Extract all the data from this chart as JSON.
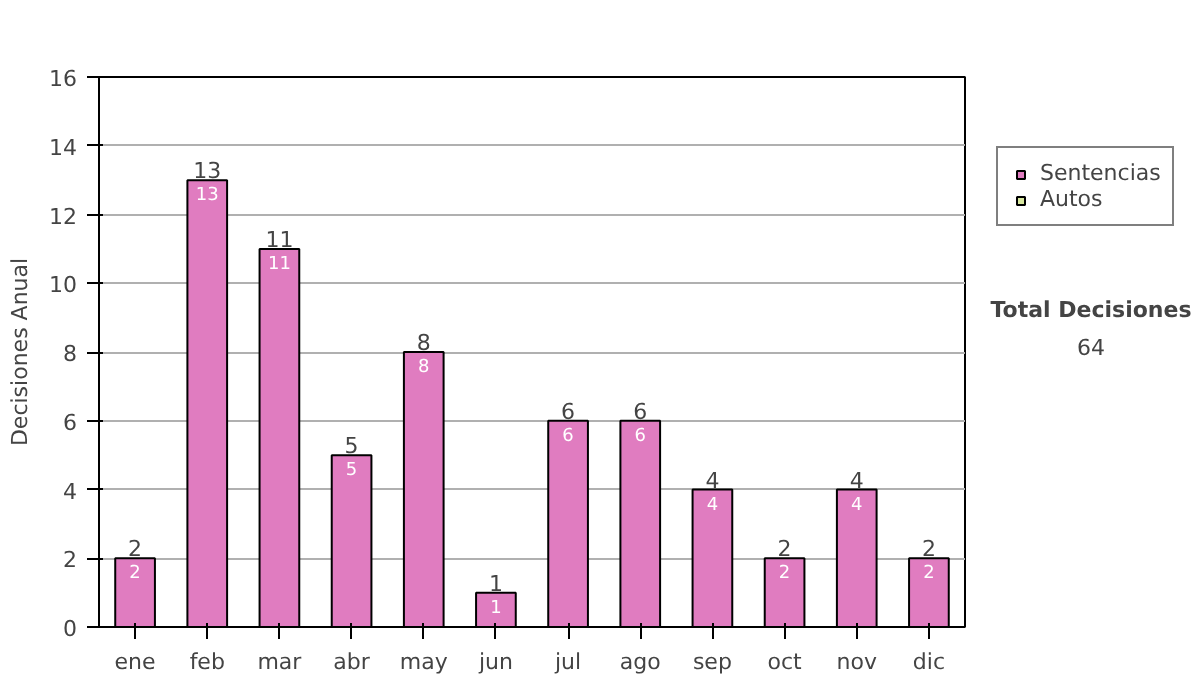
{
  "chart_data": {
    "type": "bar",
    "ylabel": "Decisiones Anual",
    "categories": [
      "ene",
      "feb",
      "mar",
      "abr",
      "may",
      "jun",
      "jul",
      "ago",
      "sep",
      "oct",
      "nov",
      "dic"
    ],
    "series": [
      {
        "name": "Sentencias",
        "color": "#e07cc0",
        "values": [
          2,
          13,
          11,
          5,
          8,
          1,
          6,
          6,
          4,
          2,
          4,
          2
        ],
        "value_labels": [
          "2",
          "13",
          "11",
          "5",
          "8",
          "1",
          "6",
          "6",
          "4",
          "2",
          "4",
          "2"
        ]
      },
      {
        "name": "Autos",
        "color": "#d8e8a0",
        "values": [
          null,
          null,
          null,
          null,
          null,
          null,
          null,
          null,
          null,
          null,
          null,
          null
        ]
      }
    ],
    "ylim": [
      0,
      16
    ],
    "yticks": [
      0,
      2,
      4,
      6,
      8,
      10,
      12,
      14,
      16
    ],
    "grid": "y",
    "legend": "right",
    "annotations": [
      "Total Decisiones",
      "64"
    ]
  }
}
